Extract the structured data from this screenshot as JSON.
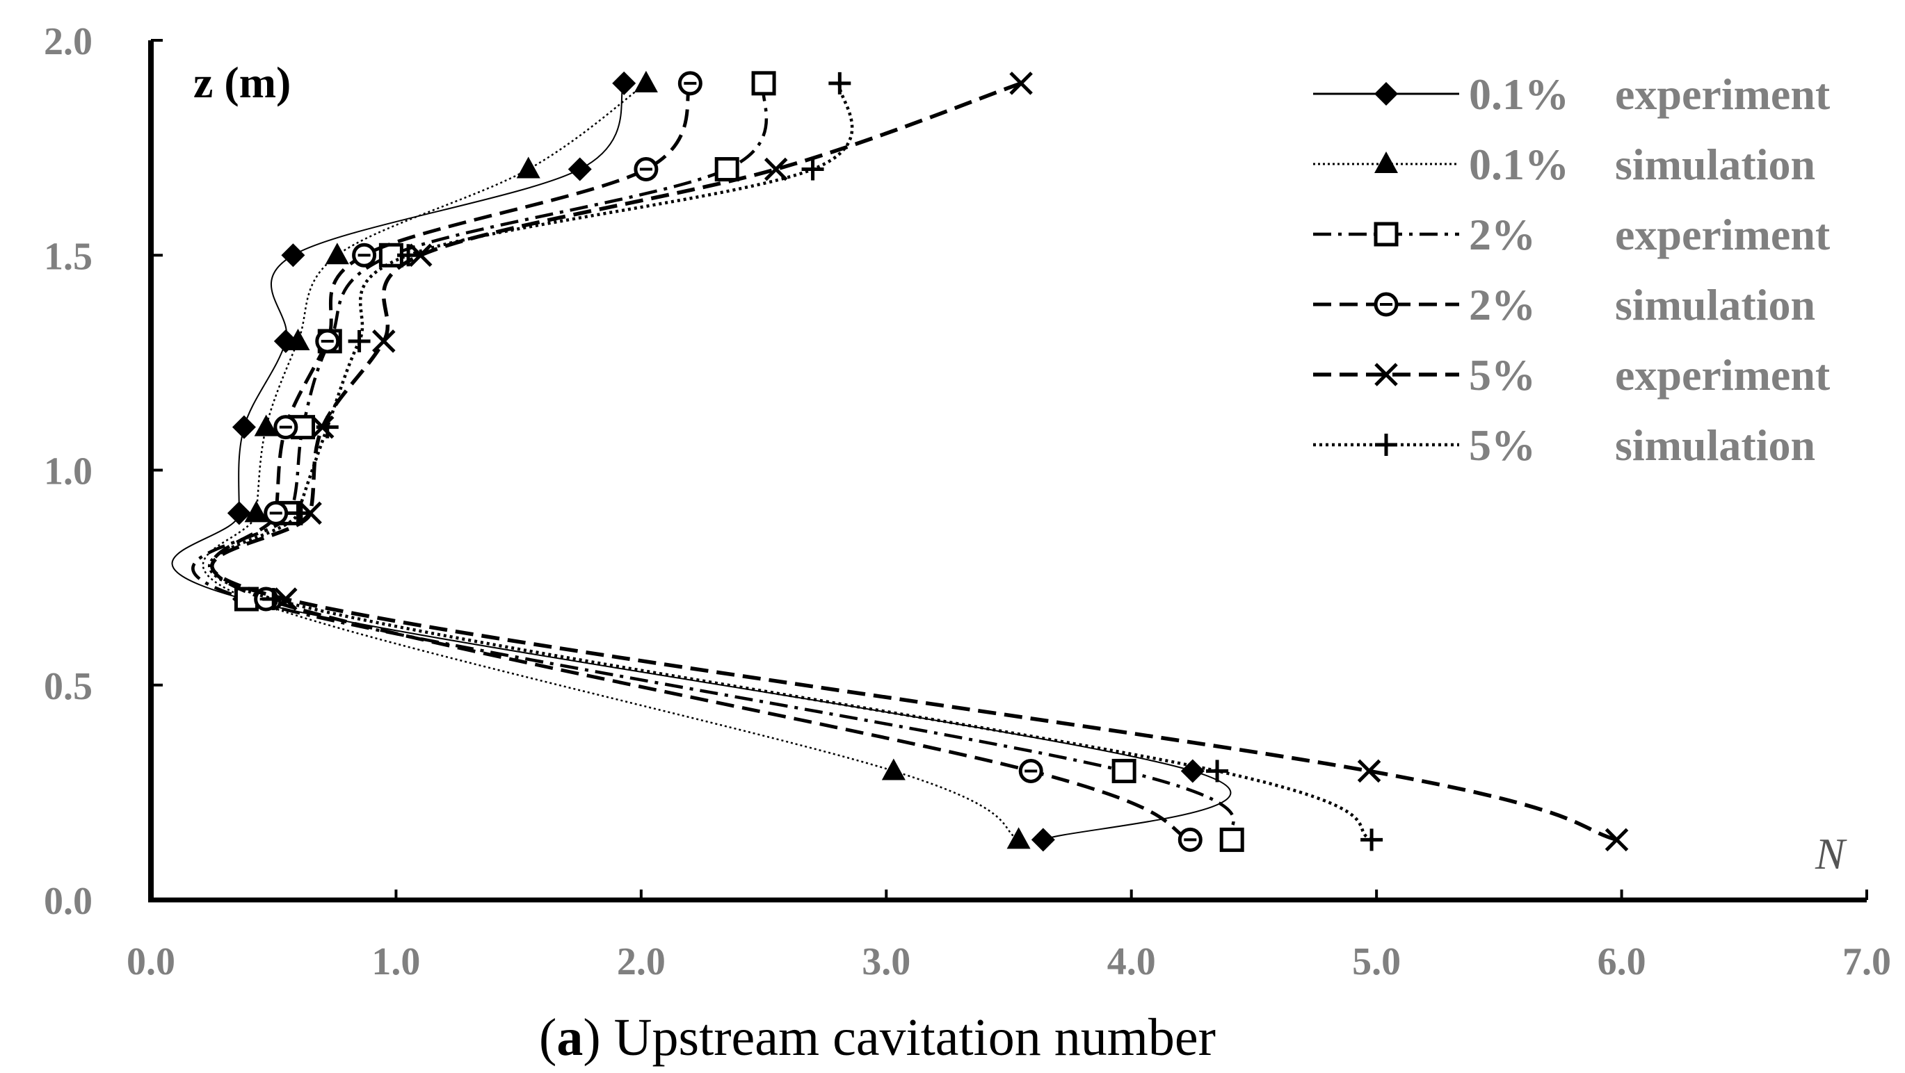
{
  "chart_data": {
    "type": "line",
    "title": "",
    "caption": {
      "prefix": "(",
      "letter": "a",
      "rest": ") Upstream cavitation number"
    },
    "xlabel": "N",
    "ylabel": "z (m)",
    "xlim": [
      0,
      7
    ],
    "ylim": [
      0,
      2
    ],
    "xticks": [
      "0.0",
      "1.0",
      "2.0",
      "3.0",
      "4.0",
      "5.0",
      "6.0",
      "7.0"
    ],
    "yticks": [
      "0.0",
      "0.5",
      "1.0",
      "1.5",
      "2.0"
    ],
    "legend_position": "top-right",
    "series": [
      {
        "pct": "0.1%",
        "kind": "experiment",
        "marker": "diamond",
        "dash": "solid",
        "width": 2,
        "points": [
          [
            1.93,
            1.9
          ],
          [
            1.75,
            1.7
          ],
          [
            0.58,
            1.5
          ],
          [
            0.55,
            1.3
          ],
          [
            0.38,
            1.1
          ],
          [
            0.36,
            0.9
          ],
          [
            0.38,
            0.7
          ],
          [
            4.25,
            0.3
          ],
          [
            3.64,
            0.14
          ]
        ]
      },
      {
        "pct": "0.1%",
        "kind": "simulation",
        "marker": "triangle",
        "dash": "fine",
        "width": 2.5,
        "points": [
          [
            2.02,
            1.9
          ],
          [
            1.54,
            1.7
          ],
          [
            0.76,
            1.5
          ],
          [
            0.6,
            1.3
          ],
          [
            0.47,
            1.1
          ],
          [
            0.43,
            0.9
          ],
          [
            0.4,
            0.7
          ],
          [
            3.03,
            0.3
          ],
          [
            3.54,
            0.14
          ]
        ]
      },
      {
        "pct": "2%",
        "kind": "experiment",
        "marker": "square",
        "dash": "dashdot",
        "width": 4.5,
        "points": [
          [
            2.5,
            1.9
          ],
          [
            2.35,
            1.7
          ],
          [
            0.98,
            1.5
          ],
          [
            0.73,
            1.3
          ],
          [
            0.62,
            1.1
          ],
          [
            0.57,
            0.9
          ],
          [
            0.39,
            0.7
          ],
          [
            3.97,
            0.3
          ],
          [
            4.41,
            0.14
          ]
        ]
      },
      {
        "pct": "2%",
        "kind": "simulation",
        "marker": "circle",
        "dash": "dash",
        "width": 5,
        "points": [
          [
            2.2,
            1.9
          ],
          [
            2.02,
            1.7
          ],
          [
            0.87,
            1.5
          ],
          [
            0.72,
            1.3
          ],
          [
            0.55,
            1.1
          ],
          [
            0.51,
            0.9
          ],
          [
            0.47,
            0.7
          ],
          [
            3.59,
            0.3
          ],
          [
            4.24,
            0.14
          ]
        ]
      },
      {
        "pct": "5%",
        "kind": "experiment",
        "marker": "x",
        "dash": "dash",
        "width": 5.5,
        "points": [
          [
            3.55,
            1.9
          ],
          [
            2.55,
            1.7
          ],
          [
            1.1,
            1.5
          ],
          [
            0.95,
            1.3
          ],
          [
            0.7,
            1.1
          ],
          [
            0.65,
            0.9
          ],
          [
            0.55,
            0.7
          ],
          [
            4.97,
            0.3
          ],
          [
            5.98,
            0.14
          ]
        ]
      },
      {
        "pct": "5%",
        "kind": "simulation",
        "marker": "plus",
        "dash": "dot",
        "width": 4.5,
        "points": [
          [
            2.81,
            1.9
          ],
          [
            2.7,
            1.7
          ],
          [
            1.05,
            1.5
          ],
          [
            0.85,
            1.3
          ],
          [
            0.72,
            1.1
          ],
          [
            0.6,
            0.9
          ],
          [
            0.5,
            0.7
          ],
          [
            4.35,
            0.3
          ],
          [
            4.98,
            0.14
          ]
        ]
      }
    ]
  }
}
